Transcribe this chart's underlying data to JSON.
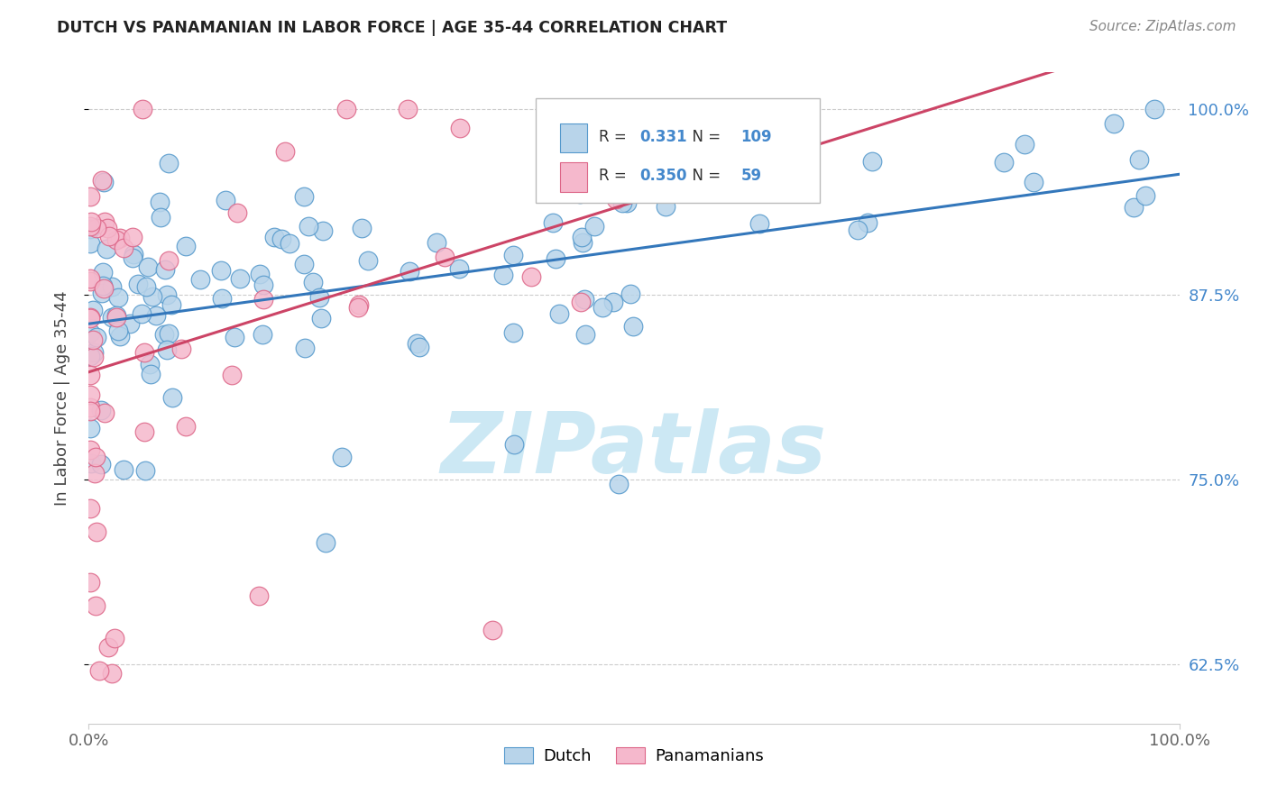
{
  "title": "DUTCH VS PANAMANIAN IN LABOR FORCE | AGE 35-44 CORRELATION CHART",
  "source_text": "Source: ZipAtlas.com",
  "ylabel": "In Labor Force | Age 35-44",
  "ytick_vals": [
    0.625,
    0.75,
    0.875,
    1.0
  ],
  "ytick_labels": [
    "62.5%",
    "75.0%",
    "87.5%",
    "100.0%"
  ],
  "xlim": [
    0.0,
    1.0
  ],
  "ylim": [
    0.585,
    1.025
  ],
  "legend_dutch_R": "0.331",
  "legend_dutch_N": "109",
  "legend_pana_R": "0.350",
  "legend_pana_N": "59",
  "dutch_fill": "#b8d4ea",
  "dutch_edge": "#5599cc",
  "pana_fill": "#f5b8cc",
  "pana_edge": "#dd6688",
  "dutch_line": "#3377bb",
  "pana_line": "#cc4466",
  "watermark_color": "#cce8f4",
  "watermark_text": "ZIPatlas",
  "grid_color": "#cccccc",
  "title_color": "#222222",
  "source_color": "#888888",
  "ylabel_color": "#444444",
  "tick_color": "#666666",
  "right_tick_color": "#4488cc"
}
